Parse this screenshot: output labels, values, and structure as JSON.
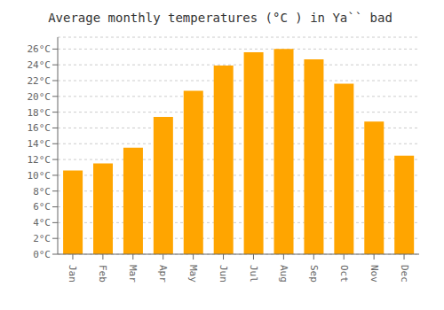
{
  "chart_data": {
    "type": "bar",
    "title": "Average monthly temperatures (°C ) in Ya`` bad",
    "categories": [
      "Jan",
      "Feb",
      "Mar",
      "Apr",
      "May",
      "Jun",
      "Jul",
      "Aug",
      "Sep",
      "Oct",
      "Nov",
      "Dec"
    ],
    "values": [
      10.6,
      11.5,
      13.5,
      17.4,
      20.7,
      23.9,
      25.6,
      26.0,
      24.7,
      21.6,
      16.8,
      12.5
    ],
    "color": "#FFA500",
    "ylim": [
      0,
      27.5
    ],
    "yticks": [
      {
        "value": 0,
        "label": "0°C"
      },
      {
        "value": 2,
        "label": "2°C"
      },
      {
        "value": 4,
        "label": "4°C"
      },
      {
        "value": 6,
        "label": "6°C"
      },
      {
        "value": 8,
        "label": "8°C"
      },
      {
        "value": 10,
        "label": "10°C"
      },
      {
        "value": 12,
        "label": "12°C"
      },
      {
        "value": 14,
        "label": "14°C"
      },
      {
        "value": 16,
        "label": "16°C"
      },
      {
        "value": 18,
        "label": "18°C"
      },
      {
        "value": 20,
        "label": "20°C"
      },
      {
        "value": 22,
        "label": "22°C"
      },
      {
        "value": 24,
        "label": "24°C"
      },
      {
        "value": 26,
        "label": "26°C"
      }
    ],
    "grid": true
  }
}
